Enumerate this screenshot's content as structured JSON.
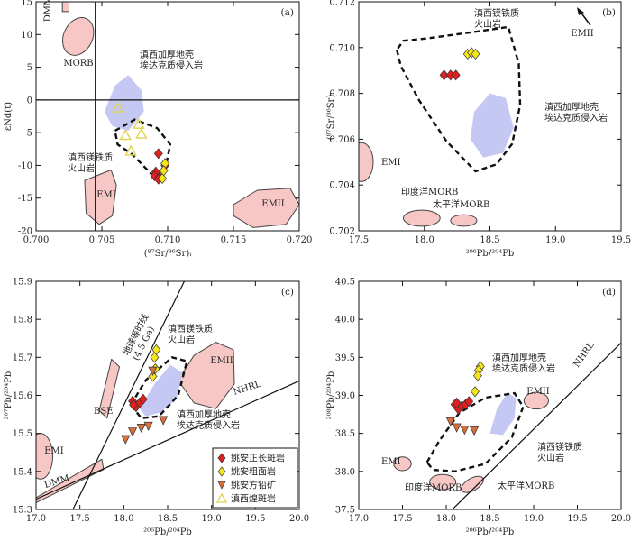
{
  "chart_data": [
    {
      "panel": "(a)",
      "type": "scatter",
      "xlabel": "(⁸⁷Sr/⁸⁶Sr)ᵢ",
      "ylabel": "εNd(t)",
      "xlim": [
        0.7,
        0.72
      ],
      "ylim": [
        -20,
        15
      ],
      "xticks": [
        "0.700",
        "0.705",
        "0.710",
        "0.715",
        "0.720"
      ],
      "yticks": [
        "15",
        "10",
        "5",
        "0",
        "-5",
        "-10",
        "-15",
        "-20"
      ],
      "reference_lines": {
        "vertical_x": 0.7045,
        "horizontal_y": 0
      },
      "fields": [
        {
          "label": "DMM",
          "type": "rect",
          "bounds": [
            0.702,
            0.7025,
            13.5,
            15.5
          ]
        },
        {
          "label": "MORB",
          "type": "ellipse",
          "center": [
            0.7032,
            9.7
          ],
          "radii": [
            0.0011,
            3.0
          ],
          "rotate_deg": 25
        },
        {
          "label": "EMI",
          "type": "polygon",
          "points": [
            [
              0.7037,
              -12.3
            ],
            [
              0.7057,
              -10.7
            ],
            [
              0.7061,
              -13.0
            ],
            [
              0.7058,
              -17.7
            ],
            [
              0.7048,
              -19.0
            ],
            [
              0.7038,
              -17.3
            ]
          ]
        },
        {
          "label": "EMII",
          "type": "polygon",
          "points": [
            [
              0.715,
              -16.0
            ],
            [
              0.7168,
              -13.8
            ],
            [
              0.7193,
              -13.5
            ],
            [
              0.72,
              -16.0
            ],
            [
              0.719,
              -19.0
            ],
            [
              0.7165,
              -19.5
            ],
            [
              0.715,
              -17.7
            ]
          ]
        },
        {
          "label": "滇西加厚地壳\n埃达克质侵入岩",
          "type": "polygon",
          "style": "blue-fill",
          "points": [
            [
              0.7052,
              -1.8
            ],
            [
              0.706,
              2.2
            ],
            [
              0.707,
              3.8
            ],
            [
              0.708,
              1.5
            ],
            [
              0.7082,
              -1.8
            ],
            [
              0.707,
              -4.7
            ],
            [
              0.7058,
              -4.0
            ]
          ]
        },
        {
          "label": "滇西镁铁质\n火山岩",
          "type": "polygon",
          "style": "dashed",
          "points": [
            [
              0.706,
              -4.7
            ],
            [
              0.7075,
              -3.0
            ],
            [
              0.7092,
              -4.3
            ],
            [
              0.7102,
              -6.8
            ],
            [
              0.7098,
              -10.7
            ],
            [
              0.7095,
              -12.7
            ],
            [
              0.709,
              -11.8
            ],
            [
              0.7073,
              -8.3
            ],
            [
              0.7062,
              -6.8
            ]
          ]
        }
      ],
      "series": [
        {
          "name": "姚安正长斑岩",
          "marker": "diamond",
          "color": "#e02020",
          "points": [
            [
              0.7093,
              -8.2
            ],
            [
              0.7091,
              -11.0
            ],
            [
              0.709,
              -11.6
            ],
            [
              0.7094,
              -11.8
            ],
            [
              0.7093,
              -12.1
            ],
            [
              0.7098,
              -10.0
            ]
          ]
        },
        {
          "name": "姚安粗面岩",
          "marker": "diamond",
          "color": "#f5e61c",
          "points": [
            [
              0.7098,
              -9.7
            ],
            [
              0.7096,
              -12.0
            ],
            [
              0.7097,
              -10.8
            ]
          ]
        },
        {
          "name": "滇西煌斑岩",
          "marker": "triangle-open",
          "color": "#e3d24a",
          "points": [
            [
              0.7062,
              -1.2
            ],
            [
              0.7078,
              -3.7
            ],
            [
              0.7068,
              -5.4
            ],
            [
              0.708,
              -5.2
            ],
            [
              0.7072,
              -7.8
            ]
          ]
        }
      ]
    },
    {
      "panel": "(b)",
      "type": "scatter",
      "xlabel": "²⁰⁶Pb/²⁰⁴Pb",
      "ylabel": "(⁸⁷Sr/⁸⁶Sr)ᵢ",
      "xlim": [
        17.5,
        19.5
      ],
      "ylim": [
        0.702,
        0.712
      ],
      "xticks": [
        "17.5",
        "18.0",
        "18.5",
        "19.0",
        "19.5"
      ],
      "yticks": [
        "0.712",
        "0.710",
        "0.708",
        "0.706",
        "0.704",
        "0.702"
      ],
      "fields": [
        {
          "label": "EMI",
          "type": "ellipse",
          "center": [
            17.52,
            0.705
          ],
          "radii": [
            0.09,
            0.00085
          ]
        },
        {
          "label": "印度洋MORB",
          "type": "ellipse",
          "center": [
            17.98,
            0.70255
          ],
          "radii": [
            0.14,
            0.00035
          ]
        },
        {
          "label": "太平洋MORB",
          "type": "ellipse",
          "center": [
            18.3,
            0.70245
          ],
          "radii": [
            0.1,
            0.00025
          ]
        },
        {
          "label": "滇西加厚地壳\n埃达克质侵入岩",
          "type": "polygon",
          "style": "blue-fill",
          "points": [
            [
              18.35,
              0.706
            ],
            [
              18.38,
              0.7072
            ],
            [
              18.5,
              0.708
            ],
            [
              18.62,
              0.7078
            ],
            [
              18.68,
              0.7065
            ],
            [
              18.6,
              0.7054
            ],
            [
              18.45,
              0.7052
            ]
          ]
        },
        {
          "label": "滇西镁铁质\n火山岩",
          "type": "polygon",
          "style": "dashed",
          "points": [
            [
              17.79,
              0.7099
            ],
            [
              17.82,
              0.7092
            ],
            [
              17.96,
              0.7077
            ],
            [
              18.17,
              0.7059
            ],
            [
              18.39,
              0.7046
            ],
            [
              18.55,
              0.7049
            ],
            [
              18.67,
              0.7058
            ],
            [
              18.73,
              0.7075
            ],
            [
              18.72,
              0.7093
            ],
            [
              18.64,
              0.7109
            ],
            [
              18.4,
              0.7107
            ],
            [
              18.02,
              0.7104
            ],
            [
              17.84,
              0.7103
            ]
          ]
        }
      ],
      "series": [
        {
          "name": "姚安正长斑岩",
          "marker": "diamond",
          "color": "#e02020",
          "points": [
            [
              18.15,
              0.7088
            ],
            [
              18.2,
              0.7088
            ],
            [
              18.24,
              0.7088
            ]
          ]
        },
        {
          "name": "姚安粗面岩",
          "marker": "diamond",
          "color": "#f5e61c",
          "points": [
            [
              18.33,
              0.70972
            ],
            [
              18.36,
              0.70978
            ],
            [
              18.39,
              0.70972
            ]
          ]
        }
      ],
      "annotations": [
        "EMII"
      ]
    },
    {
      "panel": "(c)",
      "type": "scatter",
      "xlabel": "²⁰⁶Pb/²⁰⁴Pb",
      "ylabel": "²⁰⁷Pb/²⁰⁴Pb",
      "xlim": [
        17.0,
        20.0
      ],
      "ylim": [
        15.3,
        15.9
      ],
      "xticks": [
        "17.0",
        "17.5",
        "18.0",
        "18.5",
        "19.0",
        "19.5",
        "20.0"
      ],
      "yticks": [
        "15.9",
        "15.8",
        "15.7",
        "15.6",
        "15.5",
        "15.4",
        "15.3"
      ],
      "reference_lines": [
        {
          "label": "地球等时线\n(4.5 Ga)",
          "from": [
            17.42,
            15.3
          ],
          "to": [
            18.69,
            15.9
          ]
        },
        {
          "label": "NHRL",
          "from": [
            17.0,
            15.327
          ],
          "to": [
            20.0,
            15.638
          ]
        }
      ],
      "fields": [
        {
          "label": "EMI",
          "type": "ellipse",
          "center": [
            17.05,
            15.44
          ],
          "radii": [
            0.14,
            0.06
          ]
        },
        {
          "label": "DMM",
          "type": "band",
          "points": [
            [
              17.0,
              15.331
            ],
            [
              17.75,
              15.432
            ],
            [
              17.77,
              15.405
            ],
            [
              17.0,
              15.318
            ]
          ]
        },
        {
          "label": "BSE",
          "type": "band",
          "points": [
            [
              17.72,
              15.56
            ],
            [
              17.86,
              15.695
            ],
            [
              17.95,
              15.675
            ],
            [
              17.81,
              15.54
            ]
          ]
        },
        {
          "label": "EMII",
          "type": "polygon",
          "points": [
            [
              18.62,
              15.64
            ],
            [
              18.8,
              15.705
            ],
            [
              19.05,
              15.74
            ],
            [
              19.25,
              15.72
            ],
            [
              19.26,
              15.63
            ],
            [
              19.05,
              15.565
            ],
            [
              18.8,
              15.58
            ]
          ]
        },
        {
          "label": "滇西加厚地壳\n埃达克质侵入岩",
          "type": "polygon",
          "style": "blue-fill",
          "points": [
            [
              18.18,
              15.565
            ],
            [
              18.35,
              15.63
            ],
            [
              18.53,
              15.68
            ],
            [
              18.67,
              15.66
            ],
            [
              18.6,
              15.59
            ],
            [
              18.42,
              15.555
            ],
            [
              18.25,
              15.545
            ]
          ]
        },
        {
          "label": "滇西镁铁质\n火山岩",
          "type": "polygon",
          "style": "dashed",
          "points": [
            [
              18.08,
              15.575
            ],
            [
              18.25,
              15.64
            ],
            [
              18.55,
              15.7
            ],
            [
              18.72,
              15.69
            ],
            [
              18.62,
              15.6
            ],
            [
              18.4,
              15.545
            ],
            [
              18.2,
              15.54
            ]
          ]
        }
      ],
      "series": [
        {
          "name": "姚安正长斑岩",
          "marker": "diamond",
          "color": "#e02020",
          "points": [
            [
              18.1,
              15.585
            ],
            [
              18.14,
              15.57
            ],
            [
              18.18,
              15.58
            ],
            [
              18.22,
              15.59
            ],
            [
              18.11,
              15.575
            ]
          ]
        },
        {
          "name": "姚安粗面岩",
          "marker": "diamond",
          "color": "#f5e61c",
          "points": [
            [
              18.37,
              15.72
            ],
            [
              18.35,
              15.7
            ],
            [
              18.33,
              15.65
            ],
            [
              18.36,
              15.67
            ]
          ]
        },
        {
          "name": "姚安方铅矿",
          "marker": "triangle-down",
          "color": "#d7703a",
          "points": [
            [
              18.02,
              15.485
            ],
            [
              18.1,
              15.505
            ],
            [
              18.2,
              15.515
            ],
            [
              18.28,
              15.52
            ],
            [
              18.45,
              15.535
            ],
            [
              18.33,
              15.665
            ]
          ]
        },
        {
          "name": "滇西煌斑岩",
          "marker": "triangle-open",
          "color": "#e3d24a",
          "points": []
        }
      ],
      "legend": {
        "placement": "bottom-right",
        "entries": [
          "姚安正长斑岩",
          "姚安粗面岩",
          "姚安方铅矿",
          "滇西煌斑岩"
        ]
      }
    },
    {
      "panel": "(d)",
      "type": "scatter",
      "xlabel": "²⁰⁶Pb/²⁰⁴Pb",
      "ylabel": "²⁰⁸Pb/²⁰⁴Pb",
      "xlim": [
        17.0,
        20.0
      ],
      "ylim": [
        37.5,
        40.5
      ],
      "xticks": [
        "17.0",
        "17.5",
        "18.0",
        "18.5",
        "19.0",
        "19.5",
        "20.0"
      ],
      "yticks": [
        "40.5",
        "40.0",
        "39.5",
        "39.0",
        "38.5",
        "38.0",
        "37.5"
      ],
      "reference_lines": [
        {
          "label": "NHRL",
          "from": [
            18.07,
            37.5
          ],
          "to": [
            20.0,
            39.69
          ]
        }
      ],
      "fields": [
        {
          "label": "EMI",
          "type": "ellipse",
          "center": [
            17.5,
            38.1
          ],
          "radii": [
            0.1,
            0.09
          ]
        },
        {
          "label": "印度洋MORB",
          "type": "ellipse",
          "center": [
            17.96,
            37.86
          ],
          "radii": [
            0.15,
            0.1
          ]
        },
        {
          "label": "太平洋MORB",
          "type": "ellipse",
          "center": [
            18.3,
            37.83
          ],
          "radii": [
            0.14,
            0.08
          ],
          "rotate_deg": -30
        },
        {
          "label": "EMII",
          "type": "ellipse",
          "center": [
            19.03,
            38.93
          ],
          "radii": [
            0.14,
            0.11
          ]
        },
        {
          "label": "滇西加厚地壳\n埃达克质侵入岩",
          "type": "polygon",
          "style": "blue-fill",
          "points": [
            [
              18.5,
              38.5
            ],
            [
              18.58,
              38.82
            ],
            [
              18.7,
              39.04
            ],
            [
              18.8,
              38.96
            ],
            [
              18.78,
              38.7
            ],
            [
              18.65,
              38.48
            ]
          ]
        },
        {
          "label": "滇西镁铁质\n火山岩",
          "type": "polygon",
          "style": "dashed",
          "points": [
            [
              17.78,
              38.12
            ],
            [
              17.92,
              38.4
            ],
            [
              18.15,
              38.77
            ],
            [
              18.45,
              38.97
            ],
            [
              18.78,
              39.03
            ],
            [
              18.88,
              38.85
            ],
            [
              18.75,
              38.45
            ],
            [
              18.45,
              38.1
            ],
            [
              18.1,
              38.0
            ],
            [
              17.85,
              38.02
            ]
          ]
        }
      ],
      "series": [
        {
          "name": "姚安正长斑岩",
          "marker": "diamond",
          "color": "#e02020",
          "points": [
            [
              18.1,
              38.88
            ],
            [
              18.14,
              38.82
            ],
            [
              18.18,
              38.86
            ],
            [
              18.22,
              38.88
            ],
            [
              18.26,
              38.92
            ],
            [
              18.12,
              38.9
            ]
          ]
        },
        {
          "name": "姚安粗面岩",
          "marker": "diamond",
          "color": "#f5e61c",
          "points": [
            [
              18.39,
              39.38
            ],
            [
              18.37,
              39.33
            ],
            [
              18.36,
              39.26
            ],
            [
              18.33,
              39.05
            ]
          ]
        },
        {
          "name": "姚安方铅矿",
          "marker": "triangle-down",
          "color": "#d7703a",
          "points": [
            [
              18.05,
              38.66
            ],
            [
              18.12,
              38.58
            ],
            [
              18.21,
              38.55
            ],
            [
              18.32,
              38.54
            ]
          ]
        }
      ]
    }
  ]
}
